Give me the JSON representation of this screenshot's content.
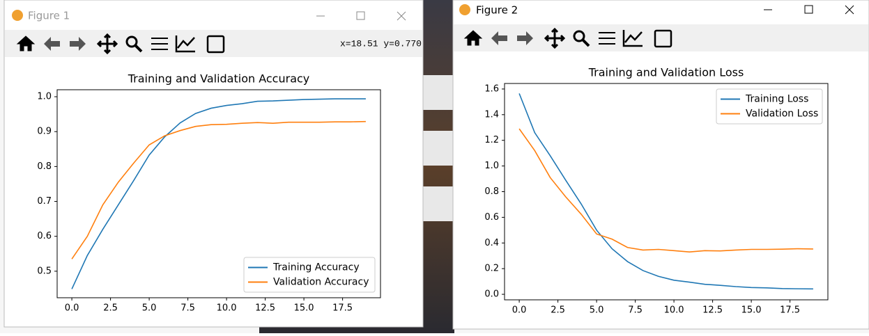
{
  "windows": [
    {
      "title": "Figure 1",
      "coords": "x=18.51 y=0.770"
    },
    {
      "title": "Figure 2"
    }
  ],
  "chart_data": [
    {
      "type": "line",
      "title": "Training and Validation Accuracy",
      "x": [
        0,
        1,
        2,
        3,
        4,
        5,
        6,
        7,
        8,
        9,
        10,
        11,
        12,
        13,
        14,
        15,
        16,
        17,
        18,
        19
      ],
      "series": [
        {
          "name": "Training Accuracy",
          "color": "#1f77b4",
          "values": [
            0.449,
            0.545,
            0.62,
            0.69,
            0.76,
            0.833,
            0.885,
            0.925,
            0.952,
            0.967,
            0.975,
            0.98,
            0.987,
            0.988,
            0.99,
            0.992,
            0.993,
            0.994,
            0.994,
            0.994
          ]
        },
        {
          "name": "Validation Accuracy",
          "color": "#ff7f0e",
          "values": [
            0.535,
            0.6,
            0.69,
            0.755,
            0.81,
            0.862,
            0.888,
            0.903,
            0.915,
            0.92,
            0.921,
            0.924,
            0.926,
            0.924,
            0.927,
            0.927,
            0.927,
            0.928,
            0.928,
            0.929
          ]
        }
      ],
      "xlim": [
        -0.95,
        19.95
      ],
      "xticks": [
        {
          "value": 0,
          "label": "0.0"
        },
        2.5,
        {
          "value": 5,
          "label": "5.0"
        },
        7.5,
        {
          "value": 10,
          "label": "10.0"
        },
        12.5,
        {
          "value": 15,
          "label": "15.0"
        },
        17.5
      ],
      "ylim": [
        0.424,
        1.02
      ],
      "yticks": [
        0.5,
        0.6,
        0.7,
        0.8,
        0.9,
        {
          "value": 1,
          "label": "1.0"
        }
      ],
      "legend": "lower right"
    },
    {
      "type": "line",
      "title": "Training and Validation Loss",
      "x": [
        0,
        1,
        2,
        3,
        4,
        5,
        6,
        7,
        8,
        9,
        10,
        11,
        12,
        13,
        14,
        15,
        16,
        17,
        18,
        19
      ],
      "series": [
        {
          "name": "Training Loss",
          "color": "#1f77b4",
          "values": [
            1.565,
            1.26,
            1.08,
            0.89,
            0.705,
            0.5,
            0.355,
            0.255,
            0.185,
            0.14,
            0.11,
            0.095,
            0.078,
            0.07,
            0.06,
            0.053,
            0.05,
            0.045,
            0.043,
            0.042
          ]
        },
        {
          "name": "Validation Loss",
          "color": "#ff7f0e",
          "values": [
            1.29,
            1.12,
            0.91,
            0.76,
            0.625,
            0.47,
            0.43,
            0.365,
            0.345,
            0.35,
            0.34,
            0.33,
            0.34,
            0.338,
            0.345,
            0.35,
            0.35,
            0.352,
            0.355,
            0.353
          ]
        }
      ],
      "xlim": [
        -0.95,
        19.95
      ],
      "xticks": [
        {
          "value": 0,
          "label": "0.0"
        },
        2.5,
        {
          "value": 5,
          "label": "5.0"
        },
        7.5,
        {
          "value": 10,
          "label": "10.0"
        },
        12.5,
        {
          "value": 15,
          "label": "15.0"
        },
        17.5
      ],
      "ylim": [
        -0.043,
        1.643
      ],
      "yticks": [
        {
          "value": 0,
          "label": "0.0"
        },
        0.2,
        0.4,
        0.6,
        0.8,
        {
          "value": 1,
          "label": "1.0"
        },
        1.2,
        1.4,
        1.6
      ],
      "legend": "upper right"
    }
  ]
}
